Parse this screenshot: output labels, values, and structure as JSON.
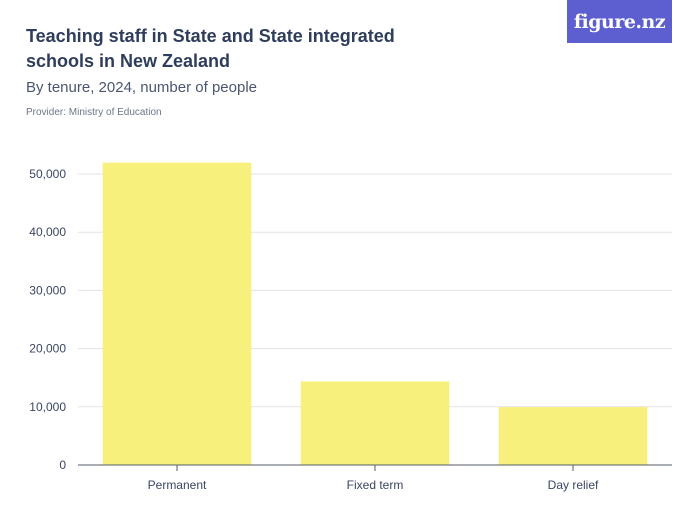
{
  "header": {
    "title": "Teaching staff in State and State integrated schools in New Zealand",
    "subtitle": "By tenure, 2024, number of people",
    "provider": "Provider: Ministry of Education"
  },
  "logo": {
    "text": "figure.nz",
    "color": "#5d5fd1"
  },
  "chart_data": {
    "type": "bar",
    "categories": [
      "Permanent",
      "Fixed term",
      "Day relief"
    ],
    "values": [
      51950,
      14350,
      9950
    ],
    "title": "Teaching staff in State and State integrated schools in New Zealand",
    "xlabel": "",
    "ylabel": "",
    "ylim": [
      0,
      50000
    ],
    "yticks": [
      0,
      10000,
      20000,
      30000,
      40000,
      50000
    ],
    "ytick_labels": [
      "0",
      "10,000",
      "20,000",
      "30,000",
      "40,000",
      "50,000"
    ],
    "grid": true,
    "bar_color": "#f8f07c",
    "grid_color": "#e3e3e3",
    "axis_color": "#555b6a"
  }
}
